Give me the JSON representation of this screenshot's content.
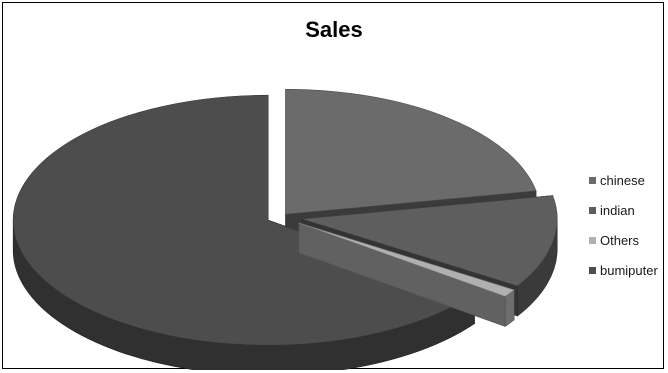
{
  "chart_data": {
    "type": "pie",
    "style": "3d-exploded",
    "title": "Sales",
    "legend_position": "right",
    "categories": [
      "chinese",
      "indian",
      "Others",
      "bumiputera"
    ],
    "values": [
      22,
      12,
      1,
      65
    ],
    "legend_labels": [
      "chinese",
      "indian",
      "Others",
      "bumiputer"
    ],
    "colors": [
      "#6b6b6b",
      "#5e5e5e",
      "#b0b0b0",
      "#4d4d4d"
    ],
    "explode": [
      0.08,
      0.24,
      0.24,
      0.16
    ]
  }
}
